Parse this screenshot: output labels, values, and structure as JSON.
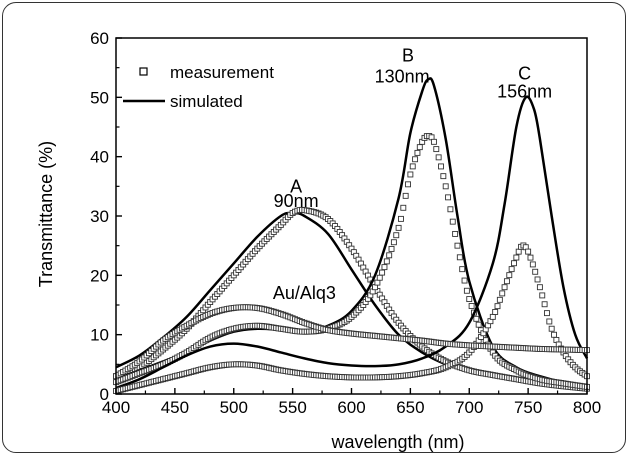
{
  "chart_data": {
    "type": "line",
    "title": "",
    "xlabel": "wavelength (nm)",
    "ylabel": "Transmittance (%)",
    "xlim": [
      400,
      800
    ],
    "ylim": [
      0,
      60
    ],
    "xticks": [
      400,
      450,
      500,
      550,
      600,
      650,
      700,
      750,
      800
    ],
    "yticks": [
      0,
      10,
      20,
      30,
      40,
      50,
      60
    ],
    "grid": false,
    "legend": {
      "position": "top-left",
      "entries": [
        {
          "label": "measurement",
          "marker": "open-square"
        },
        {
          "label": "simulated",
          "marker": "solid-line"
        }
      ]
    },
    "annotations": [
      {
        "text": "A",
        "x": 553,
        "y": 34
      },
      {
        "text": "90nm",
        "x": 553,
        "y": 31.5
      },
      {
        "text": "B",
        "x": 648,
        "y": 56
      },
      {
        "text": "130nm",
        "x": 643,
        "y": 52.5
      },
      {
        "text": "C",
        "x": 747,
        "y": 53
      },
      {
        "text": "156nm",
        "x": 747,
        "y": 50
      },
      {
        "text": "Au/Alq3",
        "x": 560,
        "y": 16
      }
    ],
    "series": [
      {
        "name": "simulated A",
        "style": "line",
        "x": [
          400,
          420,
          440,
          460,
          480,
          500,
          520,
          540,
          550,
          560,
          580,
          600,
          620,
          640,
          660,
          680,
          700,
          720,
          740,
          760,
          780,
          800
        ],
        "values": [
          4.5,
          6.5,
          9.5,
          13,
          17.5,
          22,
          26.5,
          30,
          30.5,
          30,
          27,
          21,
          15,
          10,
          7,
          5,
          3.8,
          3,
          2.3,
          1.7,
          1.2,
          0.8
        ]
      },
      {
        "name": "measured A",
        "style": "markers",
        "x": [
          400,
          420,
          440,
          460,
          480,
          500,
          520,
          540,
          550,
          560,
          580,
          600,
          620,
          640,
          660,
          680,
          700,
          720,
          740,
          760,
          780,
          800
        ],
        "values": [
          3,
          4.5,
          7.5,
          11,
          15.5,
          20,
          24.5,
          28.5,
          30.5,
          31,
          29.5,
          24.5,
          18,
          12,
          8,
          5.5,
          4,
          3.2,
          2.5,
          1.8,
          1.3,
          0.9
        ]
      },
      {
        "name": "simulated B",
        "style": "line",
        "x": [
          400,
          420,
          440,
          460,
          480,
          500,
          520,
          540,
          560,
          580,
          600,
          620,
          640,
          650,
          660,
          665,
          670,
          680,
          690,
          700,
          720,
          740,
          760,
          780,
          800
        ],
        "values": [
          2.5,
          4,
          5.5,
          7,
          9,
          10.5,
          11,
          10.8,
          10.5,
          11.5,
          14,
          20,
          33,
          44,
          51,
          53,
          52,
          43,
          30,
          19,
          8,
          4.5,
          3,
          2,
          1.5
        ]
      },
      {
        "name": "measured B",
        "style": "markers",
        "x": [
          400,
          420,
          440,
          460,
          480,
          500,
          520,
          540,
          560,
          580,
          600,
          620,
          640,
          650,
          660,
          665,
          670,
          680,
          690,
          700,
          720,
          740,
          760,
          780,
          800
        ],
        "values": [
          2,
          3.5,
          5,
          7,
          9.5,
          11,
          11.5,
          11,
          10.5,
          11,
          13,
          18,
          28,
          37,
          42.5,
          43.5,
          42.5,
          35,
          25,
          16,
          7,
          4,
          2.5,
          1.8,
          1.2
        ]
      },
      {
        "name": "simulated C",
        "style": "line",
        "x": [
          400,
          420,
          440,
          460,
          480,
          500,
          520,
          540,
          560,
          580,
          600,
          620,
          640,
          660,
          680,
          700,
          720,
          730,
          740,
          748,
          755,
          760,
          770,
          780,
          790,
          800
        ],
        "values": [
          1,
          2.5,
          4.5,
          6.5,
          8,
          8.5,
          8,
          7,
          6,
          5.2,
          4.8,
          4.7,
          5,
          6,
          8,
          12,
          22,
          32,
          45,
          50,
          48,
          43,
          30,
          18,
          10,
          6
        ]
      },
      {
        "name": "measured C",
        "style": "markers",
        "x": [
          400,
          420,
          440,
          460,
          480,
          500,
          520,
          540,
          560,
          580,
          600,
          620,
          640,
          660,
          680,
          700,
          720,
          730,
          740,
          745,
          750,
          760,
          770,
          780,
          790,
          800
        ],
        "values": [
          0.5,
          1.5,
          2.5,
          3.5,
          4.5,
          5,
          4.8,
          4,
          3.4,
          3,
          2.8,
          2.8,
          3,
          3.5,
          4.5,
          7,
          13,
          18,
          23,
          25,
          24,
          18,
          11,
          7,
          4.5,
          3
        ]
      },
      {
        "name": "measured Au/Alq3",
        "style": "markers",
        "x": [
          400,
          420,
          440,
          460,
          480,
          500,
          520,
          540,
          560,
          580,
          600,
          620,
          640,
          660,
          680,
          700,
          720,
          740,
          760,
          780,
          800
        ],
        "values": [
          3,
          5.5,
          9,
          11.5,
          13.5,
          14.5,
          14.5,
          13.5,
          12,
          10.8,
          10.2,
          9.8,
          9.4,
          9,
          8.5,
          8.2,
          8,
          7.8,
          7.6,
          7.5,
          7.4
        ]
      }
    ]
  }
}
